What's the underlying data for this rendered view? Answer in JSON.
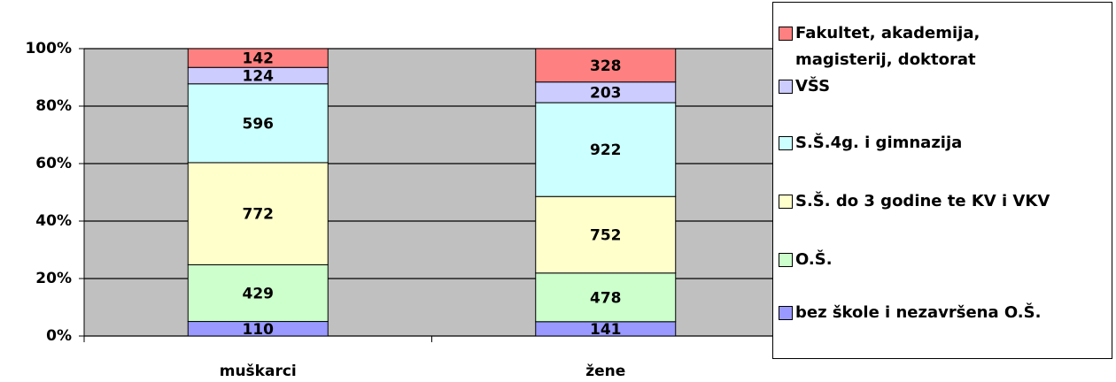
{
  "chart_data": {
    "type": "bar",
    "stacking": "percent",
    "categories": [
      "muškarci",
      "žene"
    ],
    "series": [
      {
        "name": "bez škole i nezavršena O.Š.",
        "color": "#9999ff",
        "values": [
          110,
          141
        ]
      },
      {
        "name": "O.Š.",
        "color": "#ccffcc",
        "values": [
          429,
          478
        ]
      },
      {
        "name": "S.Š. do 3 godine te KV i VKV",
        "color": "#ffffcc",
        "values": [
          772,
          752
        ]
      },
      {
        "name": "S.Š.4g. i gimnazija",
        "color": "#ccffff",
        "values": [
          596,
          922
        ]
      },
      {
        "name": "VŠS",
        "color": "#ccccff",
        "values": [
          124,
          203
        ]
      },
      {
        "name": "Fakultet, akademija, magisterij, doktorat",
        "color": "#ff8080",
        "values": [
          142,
          328
        ]
      }
    ],
    "ylim": [
      0,
      100
    ],
    "yticks": [
      {
        "value": 0,
        "label": "0%"
      },
      {
        "value": 20,
        "label": "20%"
      },
      {
        "value": 40,
        "label": "40%"
      },
      {
        "value": 60,
        "label": "60%"
      },
      {
        "value": 80,
        "label": "80%"
      },
      {
        "value": 100,
        "label": "100%"
      }
    ],
    "grid": true,
    "legend": "right"
  }
}
